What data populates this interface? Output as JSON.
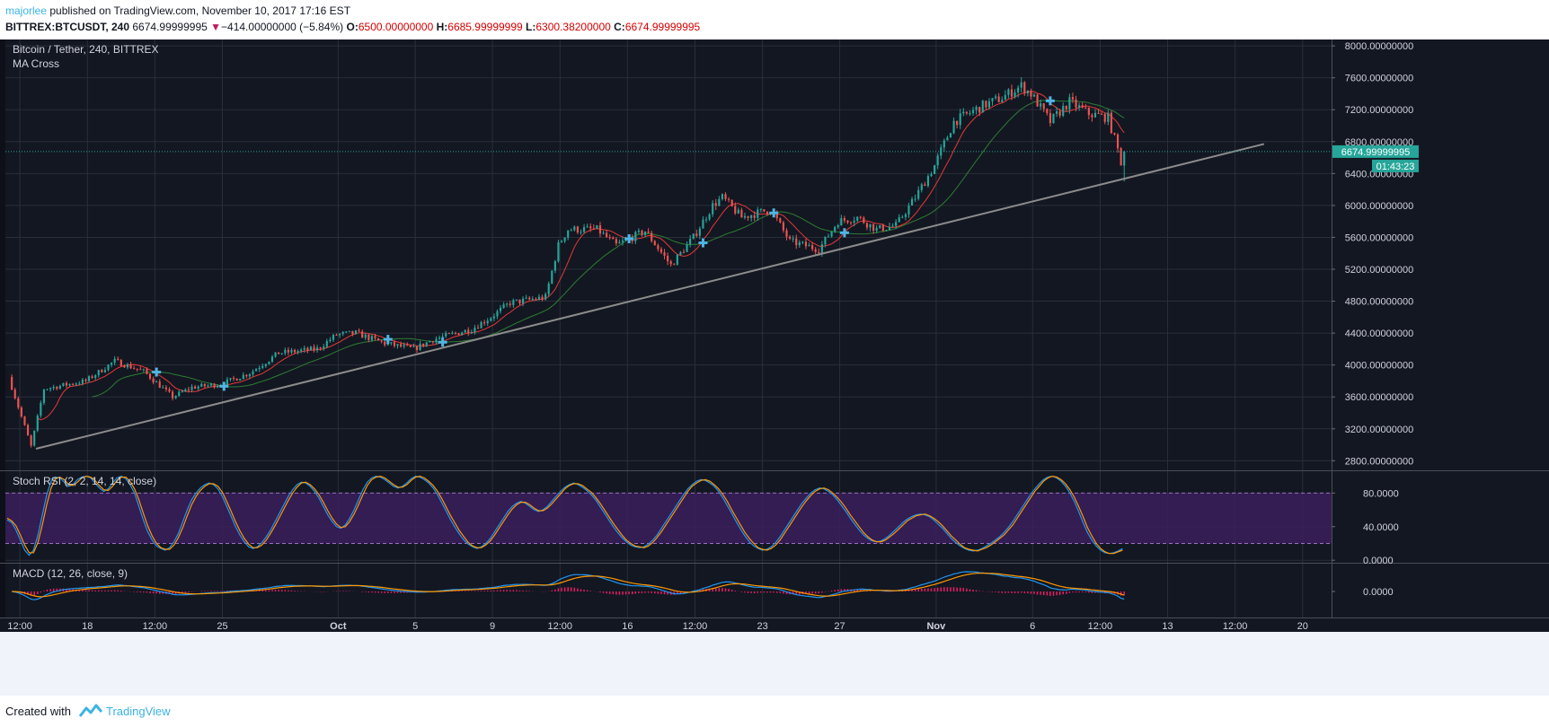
{
  "header": {
    "author": "majorlee",
    "published_text": " published on TradingView.com, November 10, 2017 17:16 EST",
    "symbol": "BITTREX:BTCUSDT, 240",
    "last": "6674.99999995",
    "change_arrow": "▼",
    "change": "−414.00000000 (−5.84%)",
    "o_label": "O:",
    "o_value": "6500.00000000",
    "h_label": "H:",
    "h_value": "6685.99999999",
    "l_label": "L:",
    "l_value": "6300.38200000",
    "c_label": "C:",
    "c_value": "6674.99999995"
  },
  "footer": {
    "created_label": "Created with",
    "brand": "TradingView"
  },
  "colors": {
    "background": "#131722",
    "grid": "#2a2e39",
    "up": "#26a69a",
    "down": "#ef5350",
    "ma_fast": "#e53935",
    "ma_slow": "#2e7d32",
    "trendline": "#8c8c8c",
    "rsi_k": "#2196f3",
    "rsi_d": "#ff9800",
    "rsi_band": "#3a1e5c",
    "macd": "#2196f3",
    "signal": "#ff9800",
    "hist": "#e91e63",
    "price_tag": "#26a69a"
  },
  "chart_data": [
    {
      "type": "candlestick",
      "title": "Bitcoin / Tether, 240, BITTREX",
      "indicator": "MA Cross",
      "x_ticks": [
        "12:00",
        "18",
        "12:00",
        "25",
        "Oct",
        "5",
        "9",
        "12:00",
        "16",
        "12:00",
        "23",
        "27",
        "Nov",
        "6",
        "12:00",
        "13",
        "12:00",
        "20"
      ],
      "y_ticks": [
        "8000.00000000",
        "7600.00000000",
        "7200.00000000",
        "6800.00000000",
        "6400.00000000",
        "6000.00000000",
        "5600.00000000",
        "5200.00000000",
        "4800.00000000",
        "4400.00000000",
        "4000.00000000",
        "3600.00000000",
        "3200.00000000",
        "2800.00000000"
      ],
      "ylim": [
        2680,
        8080
      ],
      "last_price_label": "6674.99999995",
      "countdown_label": "01:43:23",
      "last_price": 6675,
      "anchors": [
        [
          "2017-09-14 00:00",
          3850
        ],
        [
          "2017-09-15 04:00",
          2980
        ],
        [
          "2017-09-15 20:00",
          3700
        ],
        [
          "2017-09-18 00:00",
          3800
        ],
        [
          "2017-09-19 12:00",
          4050
        ],
        [
          "2017-09-21 00:00",
          3920
        ],
        [
          "2017-09-22 12:00",
          3600
        ],
        [
          "2017-09-23 12:00",
          3720
        ],
        [
          "2017-09-25 00:00",
          3760
        ],
        [
          "2017-09-26 12:00",
          3900
        ],
        [
          "2017-09-28 00:00",
          4150
        ],
        [
          "2017-09-30 00:00",
          4200
        ],
        [
          "2017-10-01 00:00",
          4380
        ],
        [
          "2017-10-02 00:00",
          4400
        ],
        [
          "2017-10-03 12:00",
          4270
        ],
        [
          "2017-10-05 00:00",
          4200
        ],
        [
          "2017-10-06 00:00",
          4320
        ],
        [
          "2017-10-08 00:00",
          4450
        ],
        [
          "2017-10-09 00:00",
          4600
        ],
        [
          "2017-10-10 00:00",
          4780
        ],
        [
          "2017-10-11 20:00",
          4850
        ],
        [
          "2017-10-12 12:00",
          5500
        ],
        [
          "2017-10-13 00:00",
          5700
        ],
        [
          "2017-10-14 12:00",
          5700
        ],
        [
          "2017-10-15 12:00",
          5500
        ],
        [
          "2017-10-17 00:00",
          5680
        ],
        [
          "2017-10-18 08:00",
          5250
        ],
        [
          "2017-10-19 12:00",
          5600
        ],
        [
          "2017-10-20 12:00",
          6000
        ],
        [
          "2017-10-21 00:00",
          6100
        ],
        [
          "2017-10-22 00:00",
          5850
        ],
        [
          "2017-10-23 12:00",
          5950
        ],
        [
          "2017-10-24 12:00",
          5550
        ],
        [
          "2017-10-26 00:00",
          5450
        ],
        [
          "2017-10-27 00:00",
          5800
        ],
        [
          "2017-10-28 00:00",
          5850
        ],
        [
          "2017-10-29 00:00",
          5700
        ],
        [
          "2017-10-30 00:00",
          5750
        ],
        [
          "2017-10-31 00:00",
          6100
        ],
        [
          "2017-11-01 00:00",
          6500
        ],
        [
          "2017-11-02 00:00",
          7050
        ],
        [
          "2017-11-03 12:00",
          7250
        ],
        [
          "2017-11-04 12:00",
          7350
        ],
        [
          "2017-11-05 12:00",
          7500
        ],
        [
          "2017-11-06 00:00",
          7400
        ],
        [
          "2017-11-07 00:00",
          7050
        ],
        [
          "2017-11-08 00:00",
          7300
        ],
        [
          "2017-11-09 00:00",
          7150
        ],
        [
          "2017-11-10 00:00",
          7100
        ],
        [
          "2017-11-10 12:00",
          6700
        ],
        [
          "2017-11-10 16:00",
          6675
        ]
      ],
      "ma_fast_period": 9,
      "ma_slow_period": 26,
      "trendline": [
        [
          "2017-09-15 08:00",
          2950
        ],
        [
          "2017-11-18 00:00",
          6770
        ]
      ]
    },
    {
      "type": "line",
      "title": "Stoch RSI (2, 2, 14, 14, close)",
      "y_ticks": [
        "80.0000",
        "40.0000",
        "0.0000"
      ],
      "ylim": [
        -3,
        106
      ],
      "band": [
        20,
        80
      ],
      "series_k": [
        48,
        45,
        36,
        24,
        12,
        6,
        12,
        30,
        54,
        78,
        94,
        99,
        98,
        93,
        88,
        90,
        96,
        99,
        100,
        98,
        92,
        86,
        82,
        85,
        92,
        98,
        100,
        97,
        90,
        80,
        64,
        48,
        34,
        24,
        17,
        14,
        12,
        15,
        22,
        32,
        46,
        60,
        72,
        80,
        86,
        90,
        92,
        90,
        85,
        76,
        64,
        52,
        40,
        30,
        22,
        16,
        14,
        16,
        21,
        28,
        36,
        46,
        56,
        66,
        76,
        84,
        90,
        93,
        92,
        88,
        82,
        74,
        64,
        54,
        46,
        40,
        38,
        42,
        50,
        60,
        72,
        84,
        93,
        98,
        100,
        99,
        96,
        92,
        88,
        86,
        88,
        92,
        97,
        100,
        99,
        96,
        92,
        86,
        78,
        68,
        58,
        48,
        39,
        31,
        24,
        19,
        16,
        14,
        16,
        20,
        26,
        34,
        42,
        50,
        58,
        64,
        68,
        70,
        68,
        64,
        60,
        58,
        60,
        64,
        70,
        76,
        82,
        87,
        90,
        92,
        90,
        87,
        83,
        78,
        72,
        64,
        56,
        48,
        40,
        33,
        27,
        22,
        18,
        16,
        15,
        16,
        19,
        24,
        30,
        38,
        46,
        54,
        62,
        70,
        78,
        85,
        90,
        94,
        96,
        95,
        92,
        88,
        82,
        74,
        65,
        56,
        46,
        37,
        29,
        22,
        17,
        14,
        12,
        13,
        16,
        21,
        28,
        36,
        44,
        52,
        60,
        68,
        74,
        80,
        84,
        86,
        85,
        82,
        78,
        72,
        65,
        58,
        50,
        43,
        36,
        30,
        26,
        23,
        22,
        23,
        26,
        30,
        35,
        40,
        45,
        49,
        52,
        54,
        55,
        54,
        52,
        48,
        43,
        38,
        32,
        26,
        21,
        17,
        14,
        12,
        11,
        12,
        14,
        17,
        20,
        24,
        28,
        33,
        39,
        46,
        54,
        62,
        70,
        78,
        85,
        91,
        96,
        99,
        100,
        98,
        94,
        88,
        80,
        70,
        58,
        45,
        33,
        24,
        17,
        12,
        9,
        8,
        9,
        11,
        14
      ],
      "series_d": [
        50,
        47,
        41,
        30,
        18,
        9,
        9,
        21,
        42,
        66,
        86,
        97,
        99,
        96,
        90,
        89,
        93,
        98,
        100,
        99,
        95,
        89,
        84,
        83,
        88,
        95,
        99,
        99,
        94,
        85,
        72,
        56,
        41,
        29,
        20,
        15,
        13,
        13,
        18,
        27,
        39,
        53,
        66,
        76,
        83,
        88,
        91,
        91,
        88,
        81,
        70,
        58,
        46,
        35,
        26,
        19,
        15,
        15,
        18,
        24,
        32,
        41,
        51,
        61,
        71,
        80,
        87,
        92,
        93,
        90,
        85,
        78,
        69,
        59,
        50,
        43,
        39,
        40,
        46,
        55,
        66,
        78,
        89,
        96,
        99,
        100,
        98,
        94,
        90,
        87,
        87,
        90,
        95,
        99,
        100,
        98,
        94,
        89,
        82,
        73,
        63,
        53,
        44,
        35,
        28,
        21,
        17,
        15,
        15,
        18,
        23,
        30,
        38,
        46,
        54,
        61,
        66,
        69,
        69,
        66,
        62,
        59,
        59,
        62,
        67,
        73,
        79,
        85,
        89,
        91,
        91,
        89,
        85,
        81,
        75,
        68,
        60,
        52,
        44,
        37,
        30,
        24,
        20,
        17,
        16,
        15,
        17,
        21,
        27,
        34,
        42,
        50,
        58,
        66,
        74,
        82,
        88,
        92,
        95,
        96,
        94,
        90,
        85,
        78,
        70,
        60,
        51,
        42,
        33,
        26,
        20,
        15,
        13,
        12,
        14,
        18,
        24,
        32,
        40,
        48,
        56,
        64,
        71,
        77,
        82,
        85,
        86,
        84,
        80,
        75,
        69,
        62,
        54,
        47,
        40,
        33,
        28,
        24,
        22,
        22,
        24,
        28,
        32,
        37,
        42,
        47,
        50,
        53,
        54,
        55,
        53,
        50,
        46,
        41,
        35,
        29,
        24,
        19,
        15,
        13,
        12,
        11,
        13,
        15,
        18,
        22,
        26,
        30,
        36,
        42,
        50,
        58,
        66,
        74,
        82,
        88,
        94,
        98,
        100,
        99,
        96,
        91,
        84,
        75,
        64,
        52,
        39,
        29,
        20,
        14,
        10,
        8,
        8,
        10,
        12
      ]
    },
    {
      "type": "line",
      "title": "MACD (12, 26, close, 9)",
      "y_ticks": [
        "0.0000"
      ],
      "ylim": [
        -100,
        100
      ]
    }
  ]
}
